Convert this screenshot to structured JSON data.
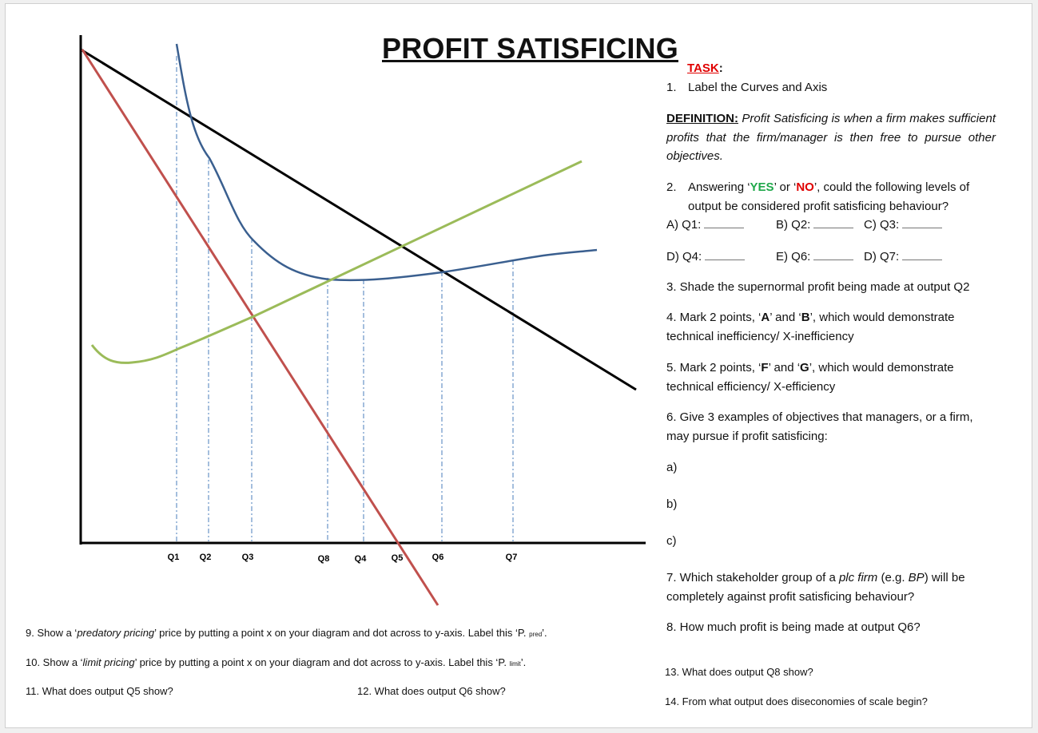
{
  "title": "PROFIT SATISFICING",
  "diagram": {
    "q_labels": [
      "Q1",
      "Q2",
      "Q3",
      "Q8",
      "Q4",
      "Q5",
      "Q6",
      "Q7"
    ]
  },
  "task": {
    "heading": "TASK",
    "colon": ":",
    "item1": {
      "number": "1.",
      "text": "Label the Curves and Axis"
    }
  },
  "definition": {
    "label": "DEFINITION:",
    "text": "Profit Satisficing is when a firm makes sufficient profits that the firm/manager is then free to pursue other objectives."
  },
  "q2": {
    "number": "2.",
    "parts": [
      "Answering ‘",
      "YES",
      "’ or ‘",
      "NO",
      "’, could the following levels of output be considered profit satisficing behaviour?"
    ],
    "options": [
      "A) Q1:",
      "B) Q2:",
      "C) Q3:",
      "D) Q4:",
      "E) Q6:",
      "D) Q7:"
    ]
  },
  "q3": "3. Shade the supernormal profit being made at output Q2",
  "q4": [
    "4. Mark 2 points, ‘",
    "A",
    "’ and ‘",
    "B",
    "’, which would demonstrate technical inefficiency/ X-inefficiency"
  ],
  "q5": [
    "5. Mark 2 points, ‘",
    "F",
    "’ and ‘",
    "G",
    "’, which would demonstrate technical efficiency/ X-efficiency"
  ],
  "q6": {
    "text": "6. Give 3 examples of objectives that managers, or a firm, may pursue if profit satisficing:",
    "answers": [
      "a)",
      "b)",
      "c)"
    ]
  },
  "q7": [
    "7. Which stakeholder group of a ",
    "plc firm",
    " (e.g. ",
    "BP",
    ") will be completely against profit satisficing behaviour?"
  ],
  "q8": "8. How much profit is being made at output Q6?",
  "q9": [
    "9. Show a ‘",
    "predatory pricing",
    "’ price by putting a point x on your diagram and dot across to y-axis. Label this ‘P. ",
    "pred",
    "’."
  ],
  "q10": [
    "10. Show a ‘",
    "limit pricing",
    "’ price by putting a point x on your diagram and dot across to y-axis. Label this ‘P. ",
    "limit",
    "’."
  ],
  "q11": "11. What does output Q5 show?",
  "q12": "12. What does output Q6 show?",
  "q13": "13. What does output Q8 show?",
  "q14": "14. From what output does diseconomies of scale begin?"
}
